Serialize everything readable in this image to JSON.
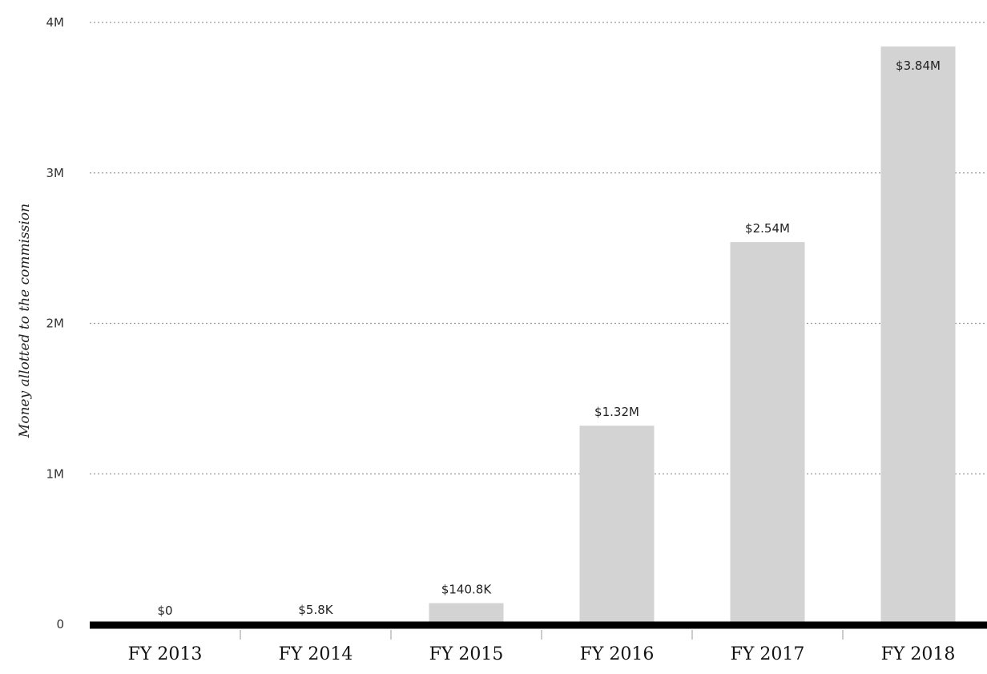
{
  "chart_data": {
    "type": "bar",
    "title": "",
    "xlabel": "",
    "ylabel": "Money allotted to the commission",
    "categories": [
      "FY 2013",
      "FY 2014",
      "FY 2015",
      "FY 2016",
      "FY 2017",
      "FY 2018"
    ],
    "values": [
      0,
      5800,
      140800,
      1320000,
      2540000,
      3840000
    ],
    "value_labels": [
      "$0",
      "$5.8K",
      "$140.8K",
      "$1.32M",
      "$2.54M",
      "$3.84M"
    ],
    "ylim": [
      0,
      4000000
    ],
    "yticks": [
      0,
      1000000,
      2000000,
      3000000,
      4000000
    ],
    "ytick_labels": [
      "0",
      "1M",
      "2M",
      "3M",
      "4M"
    ],
    "grid": true,
    "legend": "none",
    "colors": {
      "bar": "#d3d3d3",
      "baseline": "#000000",
      "grid": "#999999"
    }
  }
}
